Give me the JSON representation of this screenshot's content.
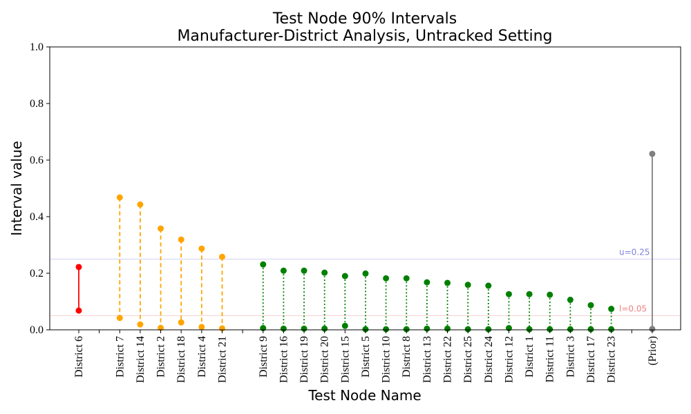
{
  "chart_data": {
    "type": "interval",
    "title": "Test Node 90% Intervals",
    "subtitle": "Manufacturer-District Analysis, Untracked Setting",
    "xlabel": "Test Node Name",
    "ylabel": "Interval value",
    "ylim": [
      0,
      1
    ],
    "yticks": [
      "0.0",
      "0.2",
      "0.4",
      "0.6",
      "0.8",
      "1.0"
    ],
    "reference_lines": [
      {
        "label": "u=0.25",
        "value": 0.25,
        "color": "#8080e0"
      },
      {
        "label": "l=0.05",
        "value": 0.05,
        "color": "#f08080"
      }
    ],
    "groups": [
      {
        "color": "#ff0000",
        "style": "solid",
        "items": [
          {
            "name": "District 6",
            "lower": 0.068,
            "upper": 0.222
          }
        ]
      },
      {
        "color": "#ffa500",
        "style": "dashed",
        "items": [
          {
            "name": "District 7",
            "lower": 0.042,
            "upper": 0.468
          },
          {
            "name": "District 14",
            "lower": 0.019,
            "upper": 0.443
          },
          {
            "name": "District 2",
            "lower": 0.007,
            "upper": 0.358
          },
          {
            "name": "District 18",
            "lower": 0.026,
            "upper": 0.319
          },
          {
            "name": "District 4",
            "lower": 0.01,
            "upper": 0.287
          },
          {
            "name": "District 21",
            "lower": 0.005,
            "upper": 0.258
          }
        ]
      },
      {
        "color": "#008000",
        "style": "dotted",
        "items": [
          {
            "name": "District 9",
            "lower": 0.006,
            "upper": 0.231
          },
          {
            "name": "District 16",
            "lower": 0.004,
            "upper": 0.209
          },
          {
            "name": "District 19",
            "lower": 0.004,
            "upper": 0.209
          },
          {
            "name": "District 20",
            "lower": 0.004,
            "upper": 0.202
          },
          {
            "name": "District 15",
            "lower": 0.014,
            "upper": 0.19
          },
          {
            "name": "District 5",
            "lower": 0.002,
            "upper": 0.199
          },
          {
            "name": "District 10",
            "lower": 0.002,
            "upper": 0.182
          },
          {
            "name": "District 8",
            "lower": 0.002,
            "upper": 0.182
          },
          {
            "name": "District 13",
            "lower": 0.004,
            "upper": 0.168
          },
          {
            "name": "District 22",
            "lower": 0.004,
            "upper": 0.166
          },
          {
            "name": "District 25",
            "lower": 0.002,
            "upper": 0.159
          },
          {
            "name": "District 24",
            "lower": 0.002,
            "upper": 0.156
          },
          {
            "name": "District 12",
            "lower": 0.006,
            "upper": 0.126
          },
          {
            "name": "District 1",
            "lower": 0.002,
            "upper": 0.126
          },
          {
            "name": "District 11",
            "lower": 0.002,
            "upper": 0.124
          },
          {
            "name": "District 3",
            "lower": 0.002,
            "upper": 0.106
          },
          {
            "name": "District 17",
            "lower": 0.002,
            "upper": 0.087
          },
          {
            "name": "District 23",
            "lower": 0.002,
            "upper": 0.074
          }
        ]
      },
      {
        "color": "#808080",
        "style": "solid",
        "items": [
          {
            "name": "(Prior)",
            "lower": 0.003,
            "upper": 0.622
          }
        ]
      }
    ]
  }
}
